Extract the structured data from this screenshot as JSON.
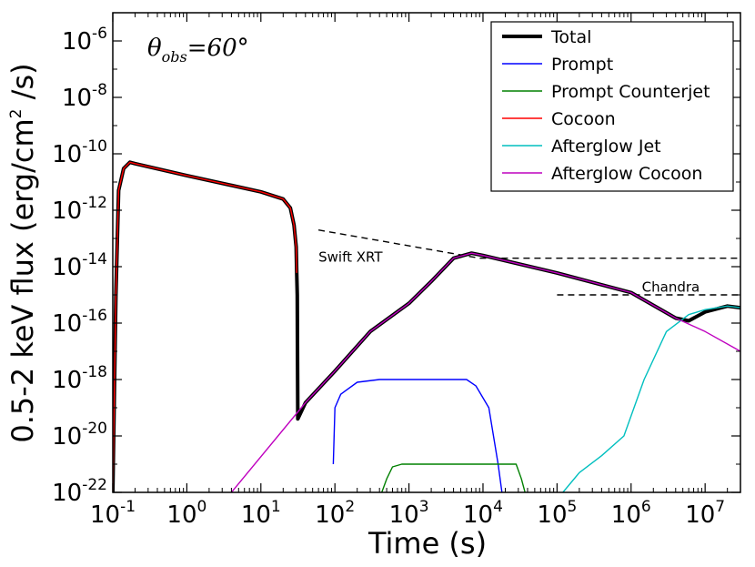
{
  "chart_data": {
    "type": "line",
    "xlabel": "Time (s)",
    "ylabel": "0.5-2 keV flux (erg/cm² /s)",
    "ylabel_parts": {
      "prefix": "0.5-2 keV flux (erg/cm",
      "sup": "2",
      "suffix": " /s)"
    },
    "xscale": "log",
    "yscale": "log",
    "xlim": [
      0.1,
      30000000
    ],
    "ylim": [
      1e-22,
      1e-05
    ],
    "x_ticks": [
      {
        "value": 0.1,
        "base": "10",
        "exp": "-1"
      },
      {
        "value": 1,
        "base": "10",
        "exp": "0"
      },
      {
        "value": 10,
        "base": "10",
        "exp": "1"
      },
      {
        "value": 100,
        "base": "10",
        "exp": "2"
      },
      {
        "value": 1000,
        "base": "10",
        "exp": "3"
      },
      {
        "value": 10000,
        "base": "10",
        "exp": "4"
      },
      {
        "value": 100000,
        "base": "10",
        "exp": "5"
      },
      {
        "value": 1000000,
        "base": "10",
        "exp": "6"
      },
      {
        "value": 10000000,
        "base": "10",
        "exp": "7"
      }
    ],
    "y_ticks": [
      {
        "value": 1e-22,
        "base": "10",
        "exp": "-22"
      },
      {
        "value": 1e-20,
        "base": "10",
        "exp": "-20"
      },
      {
        "value": 1e-18,
        "base": "10",
        "exp": "-18"
      },
      {
        "value": 1e-16,
        "base": "10",
        "exp": "-16"
      },
      {
        "value": 1e-14,
        "base": "10",
        "exp": "-14"
      },
      {
        "value": 1e-12,
        "base": "10",
        "exp": "-12"
      },
      {
        "value": 1e-10,
        "base": "10",
        "exp": "-10"
      },
      {
        "value": 1e-08,
        "base": "10",
        "exp": "-8"
      },
      {
        "value": 1e-06,
        "base": "10",
        "exp": "-6"
      }
    ],
    "annotation_theta": {
      "symbol": "θ",
      "sub": "obs",
      "value": "=60°"
    },
    "legend_position": "top-right",
    "series": [
      {
        "name": "Total",
        "color": "#000000",
        "role": "total",
        "points": [
          [
            0.1,
            1e-22
          ],
          [
            0.11,
            1e-15
          ],
          [
            0.12,
            5e-12
          ],
          [
            0.14,
            3e-11
          ],
          [
            0.17,
            5e-11
          ],
          [
            0.2,
            4.5e-11
          ],
          [
            1,
            1.7e-11
          ],
          [
            10,
            4.5e-12
          ],
          [
            20,
            2.5e-12
          ],
          [
            25,
            1.2e-12
          ],
          [
            28,
            3e-13
          ],
          [
            30,
            5e-14
          ],
          [
            30.5,
            6e-15
          ],
          [
            31,
            1e-15
          ],
          [
            31.2,
            2e-17
          ],
          [
            31.5,
            4e-20
          ],
          [
            40,
            1.5e-19
          ],
          [
            100,
            2e-18
          ],
          [
            300,
            5e-17
          ],
          [
            1000,
            5e-16
          ],
          [
            2000,
            3e-15
          ],
          [
            4000,
            2e-14
          ],
          [
            7000,
            3e-14
          ],
          [
            10000,
            2.5e-14
          ],
          [
            100000,
            6e-15
          ],
          [
            1000000,
            1.2e-15
          ],
          [
            4000000,
            1.5e-16
          ],
          [
            6000000,
            1.2e-16
          ],
          [
            10000000,
            2.5e-16
          ],
          [
            20000000,
            4e-16
          ],
          [
            30000000,
            3.5e-16
          ]
        ]
      },
      {
        "name": "Prompt",
        "color": "#0000ff",
        "role": "component",
        "points": [
          [
            95,
            1e-21
          ],
          [
            100,
            1e-19
          ],
          [
            120,
            3e-19
          ],
          [
            200,
            8e-19
          ],
          [
            400,
            1e-18
          ],
          [
            6000,
            1e-18
          ],
          [
            8000,
            6e-19
          ],
          [
            12000,
            1e-19
          ],
          [
            16000,
            1e-21
          ],
          [
            18000,
            1e-22
          ]
        ]
      },
      {
        "name": "Prompt Counterjet",
        "color": "#008000",
        "role": "component",
        "points": [
          [
            430,
            1e-22
          ],
          [
            500,
            3e-22
          ],
          [
            600,
            8e-22
          ],
          [
            800,
            1e-21
          ],
          [
            28000,
            1e-21
          ],
          [
            33000,
            3e-22
          ],
          [
            37000,
            1e-22
          ]
        ]
      },
      {
        "name": "Cocoon",
        "color": "#ff0000",
        "role": "component",
        "points": [
          [
            0.1,
            1e-22
          ],
          [
            0.11,
            1e-15
          ],
          [
            0.12,
            5e-12
          ],
          [
            0.14,
            3e-11
          ],
          [
            0.17,
            5e-11
          ],
          [
            0.2,
            4.5e-11
          ],
          [
            1,
            1.7e-11
          ],
          [
            10,
            4.5e-12
          ],
          [
            20,
            2.5e-12
          ],
          [
            25,
            1.2e-12
          ],
          [
            28,
            3e-13
          ],
          [
            30,
            5e-14
          ],
          [
            30.5,
            6e-15
          ]
        ]
      },
      {
        "name": "Afterglow Jet",
        "color": "#00bfbf",
        "role": "component",
        "points": [
          [
            120000,
            1e-22
          ],
          [
            200000,
            5e-22
          ],
          [
            400000,
            2e-21
          ],
          [
            800000,
            1e-20
          ],
          [
            1500000,
            1e-18
          ],
          [
            3000000,
            5e-17
          ],
          [
            6000000,
            2e-16
          ],
          [
            10000000,
            3e-16
          ],
          [
            20000000,
            4e-16
          ],
          [
            30000000,
            3.5e-16
          ]
        ]
      },
      {
        "name": "Afterglow Cocoon",
        "color": "#bf00bf",
        "role": "component",
        "points": [
          [
            4,
            1e-22
          ],
          [
            40,
            1.5e-19
          ],
          [
            100,
            2e-18
          ],
          [
            300,
            5e-17
          ],
          [
            1000,
            5e-16
          ],
          [
            2000,
            3e-15
          ],
          [
            4000,
            2e-14
          ],
          [
            7000,
            3e-14
          ],
          [
            10000,
            2.5e-14
          ],
          [
            100000,
            6e-15
          ],
          [
            1000000,
            1.2e-15
          ],
          [
            4000000,
            1.5e-16
          ],
          [
            10000000,
            5e-17
          ],
          [
            30000000,
            1e-17
          ]
        ]
      }
    ],
    "reference_lines": [
      {
        "label": "Swift XRT",
        "color": "#000000",
        "style": "dashed",
        "points": [
          [
            60,
            2e-13
          ],
          [
            9000,
            2e-14
          ],
          [
            30000000,
            2e-14
          ]
        ],
        "label_at": [
          60,
          1.5e-14
        ]
      },
      {
        "label": "Chandra",
        "color": "#000000",
        "style": "dashed",
        "points": [
          [
            100000,
            1e-15
          ],
          [
            30000000,
            1e-15
          ]
        ],
        "label_at": [
          1400000,
          1.3e-15
        ]
      }
    ]
  }
}
